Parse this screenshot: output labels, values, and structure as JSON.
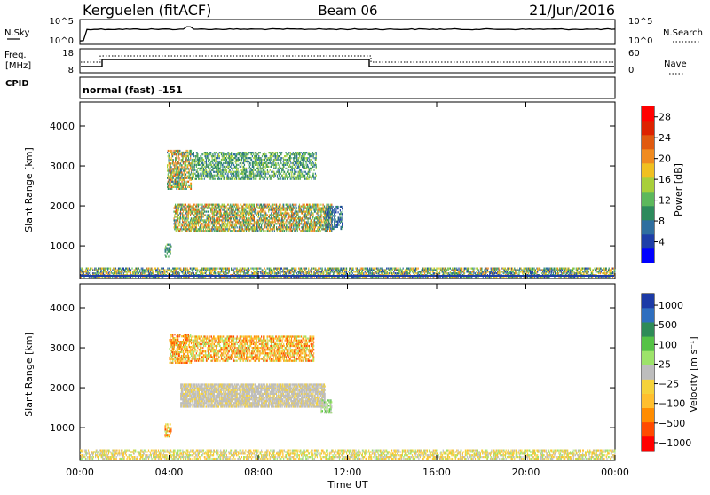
{
  "header": {
    "station": "Kerguelen (fitACF)",
    "beam": "Beam 06",
    "date": "21/Jun/2016"
  },
  "noise_panel": {
    "left_label": "N.Sky",
    "right_label": "N.Search",
    "left_ticks": [
      "10^5",
      "10^0"
    ],
    "right_ticks": [
      "10^5",
      "10^0"
    ]
  },
  "freq_panel": {
    "left_label_top": "Freq.",
    "left_label_bottom": "[MHz]",
    "right_label": "Nave",
    "cpid_label": "CPID",
    "left_ticks": [
      "18",
      "8"
    ],
    "right_ticks": [
      "60",
      "0"
    ],
    "mode_text": "normal (fast) -151"
  },
  "colors": {
    "power_scale": [
      "#0000ff",
      "#1e3ea8",
      "#2f6e9f",
      "#2d8a5c",
      "#5cb85c",
      "#a8cf3a",
      "#f0c020",
      "#f08b20",
      "#e05a10",
      "#dd2200",
      "#ff0000"
    ],
    "velocity_scale": [
      "#ff0000",
      "#ff4a00",
      "#ff8c00",
      "#ffbf2e",
      "#f5d23a",
      "#bdbdbd",
      "#9de36a",
      "#55c246",
      "#2e8b57",
      "#2f6fbf",
      "#1c3aa6"
    ]
  },
  "chart_data": [
    {
      "type": "heatmap",
      "name": "power",
      "ylabel": "Slant Range [km]",
      "xlabel": "",
      "yticks": [
        "1000",
        "2000",
        "3000",
        "4000"
      ],
      "colorbar_label": "Power [dB]",
      "colorbar_ticks": [
        "4",
        "8",
        "12",
        "16",
        "20",
        "24",
        "28"
      ],
      "colorbar_range": [
        0,
        30
      ],
      "ylim": [
        180,
        4600
      ],
      "xlim_hours": [
        0,
        24
      ],
      "regions": [
        {
          "t0": 0.0,
          "t1": 24.0,
          "r0": 200,
          "r1": 450,
          "level": "ground"
        },
        {
          "t0": 3.8,
          "t1": 4.1,
          "r0": 700,
          "r1": 1050,
          "level": "mid"
        },
        {
          "t0": 3.9,
          "t1": 5.0,
          "r0": 2400,
          "r1": 3400,
          "level": "high"
        },
        {
          "t0": 4.2,
          "t1": 11.3,
          "r0": 1350,
          "r1": 2050,
          "level": "high"
        },
        {
          "t0": 5.0,
          "t1": 10.6,
          "r0": 2650,
          "r1": 3350,
          "level": "mid"
        },
        {
          "t0": 11.0,
          "t1": 11.8,
          "r0": 1400,
          "r1": 2000,
          "level": "low"
        }
      ]
    },
    {
      "type": "heatmap",
      "name": "velocity",
      "ylabel": "Slant Range [km]",
      "xlabel": "Time UT",
      "yticks": [
        "1000",
        "2000",
        "3000",
        "4000"
      ],
      "xticks": [
        "00:00",
        "04:00",
        "08:00",
        "12:00",
        "16:00",
        "20:00",
        "00:00"
      ],
      "colorbar_label": "Velocity [m s⁻¹]",
      "colorbar_ticks": [
        "1000",
        "500",
        "100",
        "25",
        "−25",
        "−100",
        "−500",
        "−1000"
      ],
      "ylim": [
        180,
        4600
      ],
      "xlim_hours": [
        0,
        24
      ],
      "regions": [
        {
          "t0": 0.0,
          "t1": 24.0,
          "r0": 200,
          "r1": 450,
          "level": "ground"
        },
        {
          "t0": 3.8,
          "t1": 4.1,
          "r0": 750,
          "r1": 1100,
          "level": "neg"
        },
        {
          "t0": 4.0,
          "t1": 5.0,
          "r0": 2600,
          "r1": 3350,
          "level": "neg"
        },
        {
          "t0": 4.5,
          "t1": 11.0,
          "r0": 1500,
          "r1": 2100,
          "level": "zero"
        },
        {
          "t0": 5.0,
          "t1": 10.5,
          "r0": 2650,
          "r1": 3300,
          "level": "neg"
        },
        {
          "t0": 10.8,
          "t1": 11.3,
          "r0": 1350,
          "r1": 1700,
          "level": "pos"
        }
      ]
    }
  ]
}
